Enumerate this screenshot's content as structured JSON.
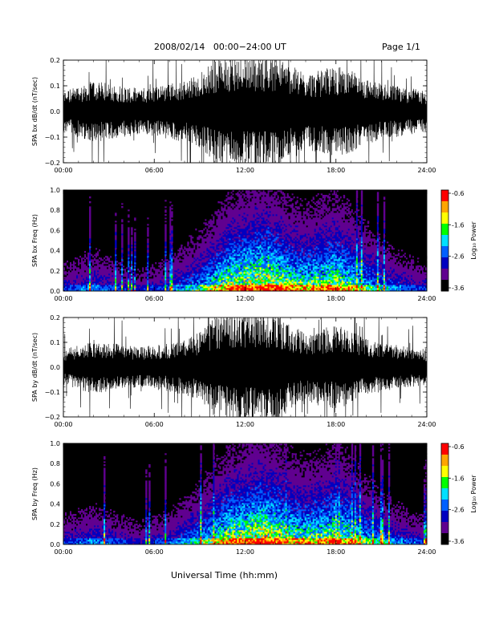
{
  "header": {
    "title": "2008/02/14   00:00−24:00 UT",
    "page": "Page 1/1"
  },
  "footer": {
    "xlabel": "Universal Time (hh:mm)"
  },
  "colorbar": {
    "ticks": [
      "-0.6",
      "-1.6",
      "-2.6",
      "-3.6"
    ],
    "label": "Log₁₀ Power",
    "colors": [
      "#ff0000",
      "#ffa500",
      "#ffff00",
      "#00ff00",
      "#00e0ff",
      "#0060ff",
      "#0000c0",
      "#600090",
      "#000000"
    ]
  },
  "chart_data": [
    {
      "type": "line",
      "ylabel": "SPA bx dB/dt (nT/sec)",
      "x_ticks": [
        "00:00",
        "06:00",
        "12:00",
        "18:00",
        "24:00"
      ],
      "xlim": [
        "00:00",
        "24:00"
      ],
      "ylim": [
        -0.2,
        0.2
      ],
      "y_ticks": [
        "0.2",
        "0.1",
        "0.0",
        "−0.1",
        "−0.2"
      ],
      "series": [
        {
          "x": [
            "00:00",
            "01:00",
            "02:00",
            "03:00",
            "04:00",
            "05:00",
            "06:00",
            "07:00",
            "08:00",
            "09:00",
            "10:00",
            "11:00",
            "12:00",
            "13:00",
            "14:00",
            "15:00",
            "16:00",
            "17:00",
            "18:00",
            "19:00",
            "20:00",
            "21:00",
            "22:00",
            "23:00",
            "24:00"
          ],
          "envelope": [
            0.08,
            0.1,
            0.12,
            0.11,
            0.1,
            0.09,
            0.1,
            0.11,
            0.12,
            0.15,
            0.2,
            0.22,
            0.22,
            0.22,
            0.22,
            0.18,
            0.15,
            0.16,
            0.18,
            0.16,
            0.13,
            0.11,
            0.1,
            0.09,
            0.08
          ]
        }
      ]
    },
    {
      "type": "heatmap",
      "ylabel": "SPA bx Freq (Hz)",
      "x_ticks": [
        "00:00",
        "06:00",
        "12:00",
        "18:00",
        "24:00"
      ],
      "xlim": [
        "00:00",
        "24:00"
      ],
      "ylim": [
        0.0,
        1.0
      ],
      "y_ticks": [
        "1.0",
        "0.8",
        "0.6",
        "0.4",
        "0.2",
        "0.0"
      ],
      "zlim": [
        -3.6,
        -0.6
      ],
      "activity_hours": [
        "00:00",
        "01:00",
        "02:00",
        "03:00",
        "04:00",
        "05:00",
        "06:00",
        "07:00",
        "08:00",
        "09:00",
        "10:00",
        "11:00",
        "12:00",
        "13:00",
        "14:00",
        "15:00",
        "16:00",
        "17:00",
        "18:00",
        "19:00",
        "20:00",
        "21:00",
        "22:00",
        "23:00",
        "24:00"
      ],
      "activity_level": [
        0.3,
        0.35,
        0.4,
        0.35,
        0.3,
        0.25,
        0.3,
        0.35,
        0.45,
        0.55,
        0.7,
        0.85,
        0.9,
        0.95,
        0.9,
        0.8,
        0.75,
        0.8,
        0.85,
        0.75,
        0.6,
        0.5,
        0.4,
        0.35,
        0.3
      ]
    },
    {
      "type": "line",
      "ylabel": "SPA by dB/dt (nT/sec)",
      "x_ticks": [
        "00:00",
        "06:00",
        "12:00",
        "18:00",
        "24:00"
      ],
      "xlim": [
        "00:00",
        "24:00"
      ],
      "ylim": [
        -0.2,
        0.2
      ],
      "y_ticks": [
        "0.2",
        "0.1",
        "0.0",
        "−0.1",
        "−0.2"
      ],
      "series": [
        {
          "x": [
            "00:00",
            "01:00",
            "02:00",
            "03:00",
            "04:00",
            "05:00",
            "06:00",
            "07:00",
            "08:00",
            "09:00",
            "10:00",
            "11:00",
            "12:00",
            "13:00",
            "14:00",
            "15:00",
            "16:00",
            "17:00",
            "18:00",
            "19:00",
            "20:00",
            "21:00",
            "22:00",
            "23:00",
            "24:00"
          ],
          "envelope": [
            0.07,
            0.09,
            0.11,
            0.1,
            0.09,
            0.08,
            0.09,
            0.1,
            0.11,
            0.14,
            0.2,
            0.22,
            0.22,
            0.22,
            0.22,
            0.17,
            0.14,
            0.15,
            0.17,
            0.15,
            0.12,
            0.1,
            0.09,
            0.08,
            0.07
          ]
        }
      ]
    },
    {
      "type": "heatmap",
      "ylabel": "SPA by Freq (Hz)",
      "x_ticks": [
        "00:00",
        "06:00",
        "12:00",
        "18:00",
        "24:00"
      ],
      "xlim": [
        "00:00",
        "24:00"
      ],
      "ylim": [
        0.0,
        1.0
      ],
      "y_ticks": [
        "1.0",
        "0.8",
        "0.6",
        "0.4",
        "0.2",
        "0.0"
      ],
      "zlim": [
        -3.6,
        -0.6
      ],
      "activity_hours": [
        "00:00",
        "01:00",
        "02:00",
        "03:00",
        "04:00",
        "05:00",
        "06:00",
        "07:00",
        "08:00",
        "09:00",
        "10:00",
        "11:00",
        "12:00",
        "13:00",
        "14:00",
        "15:00",
        "16:00",
        "17:00",
        "18:00",
        "19:00",
        "20:00",
        "21:00",
        "22:00",
        "23:00",
        "24:00"
      ],
      "activity_level": [
        0.3,
        0.35,
        0.4,
        0.35,
        0.3,
        0.25,
        0.3,
        0.35,
        0.45,
        0.55,
        0.7,
        0.85,
        0.9,
        0.95,
        0.9,
        0.8,
        0.75,
        0.8,
        0.85,
        0.75,
        0.6,
        0.5,
        0.4,
        0.35,
        0.3
      ]
    }
  ]
}
